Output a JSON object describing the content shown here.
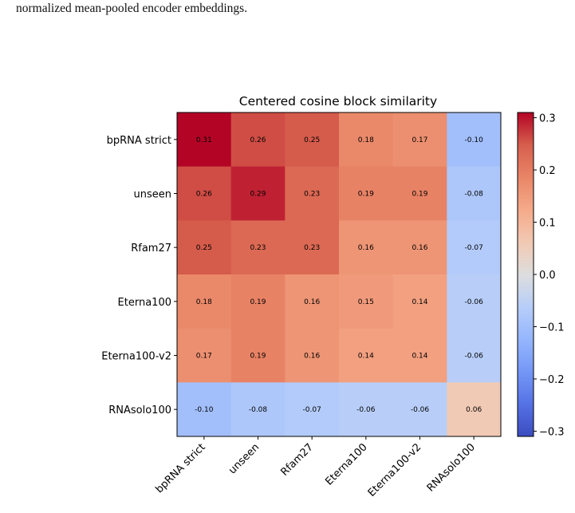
{
  "caption": "normalized mean-pooled encoder embeddings.",
  "chart_data": {
    "type": "heatmap",
    "title": "Centered cosine block similarity",
    "rows": [
      "bpRNA strict",
      "unseen",
      "Rfam27",
      "Eterna100",
      "Eterna100-v2",
      "RNAsolo100"
    ],
    "cols": [
      "bpRNA strict",
      "unseen",
      "Rfam27",
      "Eterna100",
      "Eterna100-v2",
      "RNAsolo100"
    ],
    "values": [
      [
        0.31,
        0.26,
        0.25,
        0.18,
        0.17,
        -0.1
      ],
      [
        0.26,
        0.29,
        0.23,
        0.19,
        0.19,
        -0.08
      ],
      [
        0.25,
        0.23,
        0.23,
        0.16,
        0.16,
        -0.07
      ],
      [
        0.18,
        0.19,
        0.16,
        0.15,
        0.14,
        -0.06
      ],
      [
        0.17,
        0.19,
        0.16,
        0.14,
        0.14,
        -0.06
      ],
      [
        -0.1,
        -0.08,
        -0.07,
        -0.06,
        -0.06,
        0.06
      ]
    ],
    "labels": [
      [
        "0.31",
        "0.26",
        "0.25",
        "0.18",
        "0.17",
        "-0.10"
      ],
      [
        "0.26",
        "0.29",
        "0.23",
        "0.19",
        "0.19",
        "-0.08"
      ],
      [
        "0.25",
        "0.23",
        "0.23",
        "0.16",
        "0.16",
        "-0.07"
      ],
      [
        "0.18",
        "0.19",
        "0.16",
        "0.15",
        "0.14",
        "-0.06"
      ],
      [
        "0.17",
        "0.19",
        "0.16",
        "0.14",
        "0.14",
        "-0.06"
      ],
      [
        "-0.10",
        "-0.08",
        "-0.07",
        "-0.06",
        "-0.06",
        "0.06"
      ]
    ],
    "colormap": "coolwarm",
    "vlim": [
      -0.31,
      0.31
    ],
    "colorbar_ticks": [
      0.3,
      0.2,
      0.1,
      0.0,
      -0.1,
      -0.2,
      -0.3
    ],
    "colorbar_tick_labels": [
      "0.3",
      "0.2",
      "0.1",
      "0.0",
      "−0.1",
      "−0.2",
      "−0.3"
    ]
  }
}
